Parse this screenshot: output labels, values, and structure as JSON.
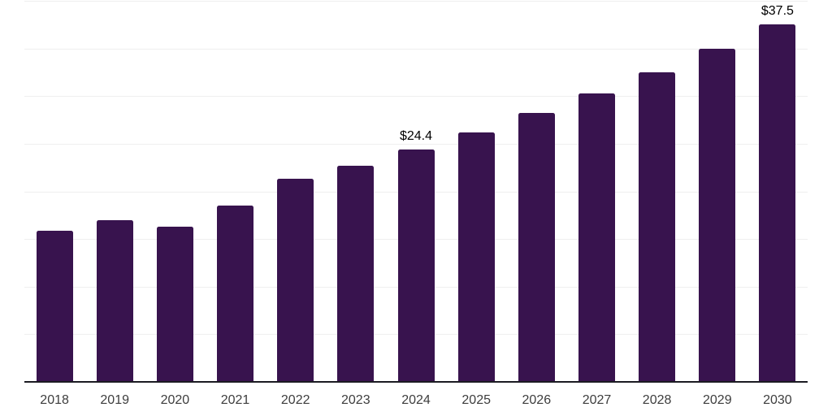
{
  "chart_data": {
    "type": "bar",
    "title": "",
    "categories": [
      "2018",
      "2019",
      "2020",
      "2021",
      "2022",
      "2023",
      "2024",
      "2025",
      "2026",
      "2027",
      "2028",
      "2029",
      "2030"
    ],
    "values": [
      15.9,
      17.0,
      16.3,
      18.5,
      21.3,
      22.7,
      24.4,
      26.2,
      28.2,
      30.3,
      32.5,
      35.0,
      37.5
    ],
    "data_labels": {
      "2024": "$24.4",
      "2030": "$37.5"
    },
    "xlabel": "",
    "ylabel": "",
    "ylim": [
      0,
      40
    ],
    "gridline_step": 5,
    "grid": true,
    "legend_position": "none",
    "colors": {
      "bar": "#38134e",
      "gridline": "#efefef",
      "axis_line": "#1b1b22",
      "tick_label": "#3d3d3d",
      "data_label": "#000000",
      "background": "#ffffff"
    }
  }
}
